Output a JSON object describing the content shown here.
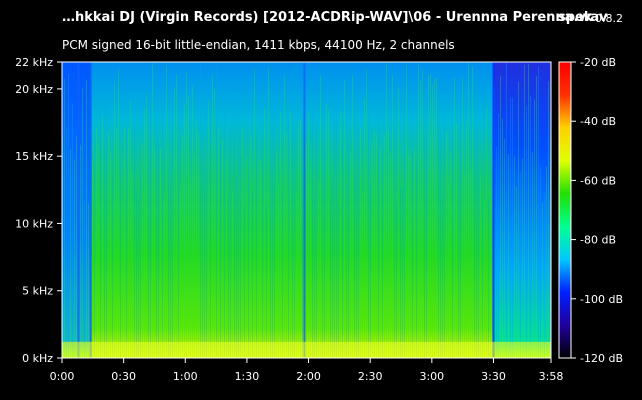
{
  "header": {
    "title": "…hkkai DJ (Virgin Records) [2012-ACDRip-WAV]\\06 - Urennna Perenna.wav",
    "subtitle": "PCM signed 16-bit little-endian, 1411 kbps, 44100 Hz, 2 channels",
    "app_name": "spek",
    "app_version": "0.8.2"
  },
  "chart_data": {
    "type": "heatmap",
    "title": "",
    "xlabel": "",
    "ylabel": "",
    "x_ticks": [
      "0:00",
      "0:30",
      "1:00",
      "1:30",
      "2:00",
      "2:30",
      "3:00",
      "3:30",
      "3:58"
    ],
    "x_tick_seconds": [
      0,
      30,
      60,
      90,
      120,
      150,
      180,
      210,
      238
    ],
    "xlim_seconds": [
      0,
      238
    ],
    "y_ticks": [
      "0 kHz",
      "5 kHz",
      "10 kHz",
      "15 kHz",
      "20 kHz",
      "22 kHz"
    ],
    "y_tick_khz": [
      0,
      5,
      10,
      15,
      20,
      22
    ],
    "ylim_khz": [
      0,
      22
    ],
    "colorbar_ticks": [
      "-20 dB",
      "-40 dB",
      "-60 dB",
      "-80 dB",
      "-100 dB",
      "-120 dB"
    ],
    "colorbar_db": [
      -20,
      -40,
      -60,
      -80,
      -100,
      -120
    ],
    "colorbar_range_db": [
      -120,
      -20
    ],
    "colorbar_colors": [
      "#000000",
      "#2000a0",
      "#0020ff",
      "#00c8ff",
      "#00ff90",
      "#20e000",
      "#e0ff00",
      "#ffd000",
      "#ff3000",
      "#ff0000"
    ],
    "events_seconds": [
      8,
      14,
      118,
      210
    ],
    "grid": false
  }
}
